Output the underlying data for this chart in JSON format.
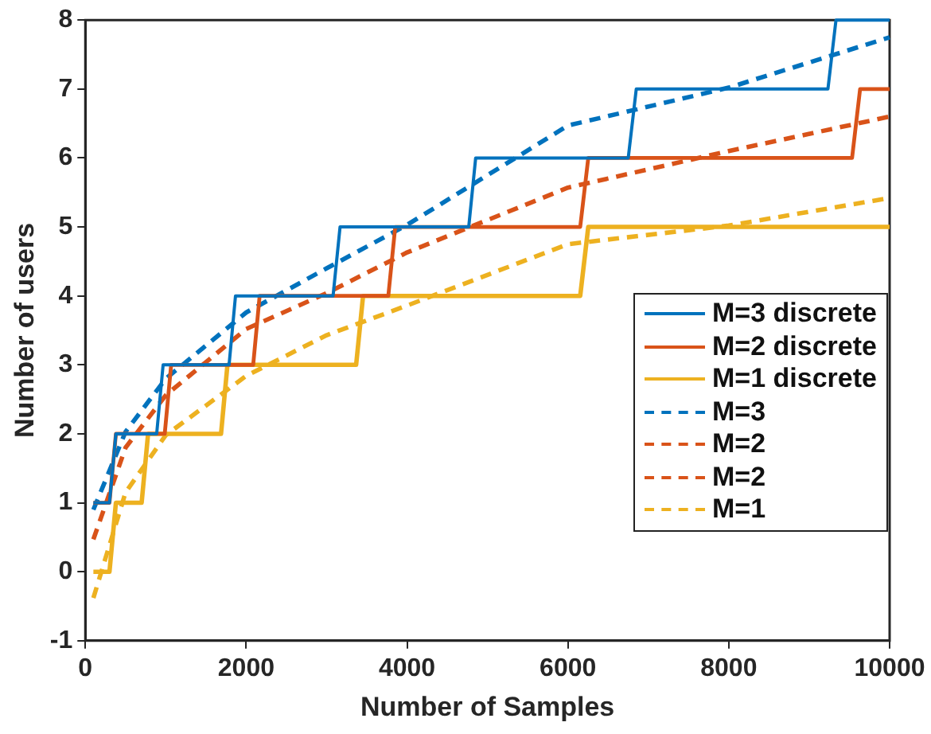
{
  "chart_data": {
    "type": "line",
    "xlabel": "Number of Samples",
    "ylabel": "Number of users",
    "xlim": [
      0,
      10000
    ],
    "ylim": [
      -1,
      8
    ],
    "xticks": [
      0,
      2000,
      4000,
      6000,
      8000,
      10000
    ],
    "yticks": [
      -1,
      0,
      1,
      2,
      3,
      4,
      5,
      6,
      7,
      8
    ],
    "grid": false,
    "legend": "right",
    "marker": "none",
    "series": [
      {
        "name": "M=3 discrete",
        "color": "#0072bd",
        "line_style": "solid",
        "x": [
          100,
          300,
          380,
          887,
          967,
          1787,
          1867,
          3080,
          3167,
          4767,
          4853,
          6750,
          6850,
          9233,
          9333,
          10000
        ],
        "values": [
          1,
          1,
          2,
          2,
          3,
          3,
          4,
          4,
          5,
          5,
          6,
          6,
          7,
          7,
          8,
          8
        ]
      },
      {
        "name": "M=2 discrete",
        "color": "#d95319",
        "line_style": "solid",
        "x": [
          100,
          300,
          380,
          987,
          1067,
          2087,
          2167,
          3767,
          3853,
          6153,
          6253,
          9533,
          9633,
          10000
        ],
        "values": [
          1,
          1,
          2,
          2,
          3,
          3,
          4,
          4,
          5,
          5,
          6,
          6,
          7,
          7
        ]
      },
      {
        "name": "M=1 discrete",
        "color": "#edb120",
        "line_style": "solid",
        "x": [
          100,
          300,
          380,
          700,
          780,
          1687,
          1767,
          3367,
          3453,
          6153,
          6253,
          10000
        ],
        "values": [
          0,
          0,
          1,
          1,
          2,
          2,
          3,
          3,
          4,
          4,
          5,
          5
        ]
      },
      {
        "name": "M=3",
        "color": "#0072bd",
        "line_style": "dashed",
        "x": [
          100,
          500,
          1000,
          2000,
          3000,
          4000,
          6000,
          8000,
          10000
        ],
        "values": [
          0.9,
          2.03,
          2.8,
          3.76,
          4.4,
          5.03,
          6.47,
          7.02,
          7.75
        ]
      },
      {
        "name": "M=2",
        "color": "#d95319",
        "line_style": "dashed",
        "x": [
          100,
          500,
          1000,
          2000,
          3000,
          4000,
          6000,
          8000,
          10000
        ],
        "values": [
          0.47,
          1.8,
          2.56,
          3.52,
          4.04,
          4.63,
          5.57,
          6.1,
          6.6
        ]
      },
      {
        "name": "M=2",
        "color": "#d95319",
        "line_style": "dashed"
      },
      {
        "name": "M=1",
        "color": "#edb120",
        "line_style": "dashed",
        "x": [
          100,
          500,
          1000,
          2000,
          3000,
          4000,
          6000,
          8000,
          10000
        ],
        "values": [
          -0.38,
          1.15,
          1.98,
          2.84,
          3.43,
          3.86,
          4.75,
          5.02,
          5.42
        ]
      }
    ]
  }
}
